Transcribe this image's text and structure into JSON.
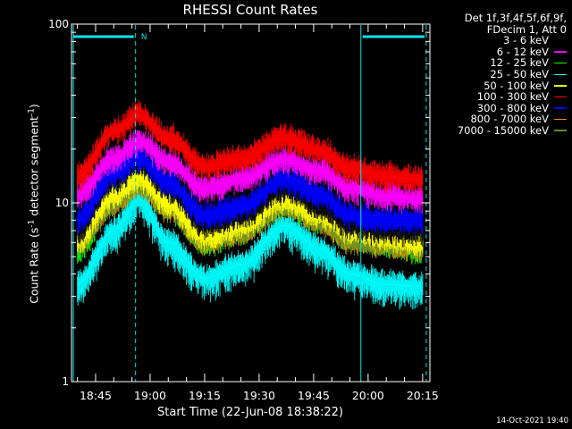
{
  "chart_data": {
    "type": "line",
    "title": "RHESSI Count Rates",
    "xlabel": "Start Time (22-Jun-08 18:38:22)",
    "ylabel_main": "Count Rate (s",
    "ylabel_exp": "-1",
    "ylabel_rest": " detector segment",
    "ylabel_exp2": "-1",
    "ylabel_close": ")",
    "y_scale": "log",
    "ylim": [
      1,
      100
    ],
    "y_ticks": [
      "1",
      "10",
      "100"
    ],
    "xlim": [
      "18:38:22",
      "20:17"
    ],
    "x_ticks": [
      "18:45",
      "19:00",
      "19:15",
      "19:30",
      "19:45",
      "20:00",
      "20:15"
    ],
    "grid": false,
    "legend_position": "top-right",
    "legend_header": [
      "Det 1f,3f,4f,5f,6f,9f,",
      "FDecim 1, Att 0"
    ],
    "series": [
      {
        "name": "3 - 6 keV",
        "color": "#000000",
        "x": [
          "18:40",
          "18:50",
          "18:57",
          "19:05",
          "19:15",
          "19:25",
          "19:37",
          "19:47",
          "19:55",
          "20:05",
          "20:15"
        ],
        "values": [
          7.0,
          13.5,
          17.0,
          12.0,
          7.5,
          8.5,
          12.0,
          9.5,
          7.5,
          7.0,
          7.0
        ]
      },
      {
        "name": "6 - 12 keV",
        "color": "#ff00ff",
        "x": [
          "18:40",
          "18:50",
          "18:57",
          "19:05",
          "19:15",
          "19:25",
          "19:37",
          "19:47",
          "19:55",
          "20:05",
          "20:15"
        ],
        "values": [
          11.0,
          17.5,
          22.0,
          17.0,
          12.0,
          13.5,
          17.5,
          15.0,
          12.0,
          11.0,
          10.5
        ]
      },
      {
        "name": "12 - 25 keV",
        "color": "#00ff00",
        "x": [
          "18:40",
          "18:50",
          "18:57",
          "19:05",
          "19:15",
          "19:25",
          "19:37",
          "19:47",
          "19:55",
          "20:05",
          "20:15"
        ],
        "values": [
          5.5,
          10.5,
          13.5,
          9.5,
          6.0,
          7.0,
          10.0,
          8.0,
          6.5,
          6.0,
          5.5
        ]
      },
      {
        "name": "25 - 50 keV",
        "color": "#00ffff",
        "x": [
          "18:40",
          "18:50",
          "18:57",
          "19:05",
          "19:15",
          "19:25",
          "19:37",
          "19:47",
          "19:55",
          "20:05",
          "20:15"
        ],
        "values": [
          3.5,
          7.0,
          10.5,
          6.0,
          3.8,
          4.5,
          7.5,
          5.5,
          4.0,
          3.5,
          3.4
        ]
      },
      {
        "name": "50 - 100 keV",
        "color": "#ffff00",
        "x": [
          "18:40",
          "18:50",
          "18:57",
          "19:05",
          "19:15",
          "19:25",
          "19:37",
          "19:47",
          "19:55",
          "20:05",
          "20:15"
        ],
        "values": [
          6.2,
          11.0,
          14.0,
          10.0,
          6.5,
          7.5,
          10.5,
          8.5,
          7.0,
          6.5,
          6.0
        ]
      },
      {
        "name": "100 - 300 keV",
        "color": "#ff0000",
        "x": [
          "18:40",
          "18:50",
          "18:57",
          "19:05",
          "19:15",
          "19:25",
          "19:37",
          "19:47",
          "19:55",
          "20:05",
          "20:15"
        ],
        "values": [
          14.0,
          25.0,
          31.0,
          23.0,
          16.0,
          17.5,
          23.0,
          19.5,
          15.5,
          14.0,
          13.5
        ]
      },
      {
        "name": "300 - 800 keV",
        "color": "#0000ff",
        "x": [
          "18:40",
          "18:50",
          "18:57",
          "19:05",
          "19:15",
          "19:25",
          "19:37",
          "19:47",
          "19:55",
          "20:05",
          "20:15"
        ],
        "values": [
          8.0,
          14.5,
          18.0,
          13.0,
          8.5,
          9.5,
          13.5,
          11.0,
          8.5,
          8.0,
          8.0
        ]
      },
      {
        "name": "800 - 7000 keV",
        "color": "#ff8c00",
        "x": [
          "18:40",
          "18:50",
          "18:57",
          "19:05",
          "19:15",
          "19:25",
          "19:37",
          "19:47",
          "19:55",
          "20:05",
          "20:15"
        ],
        "values": [
          6.0,
          10.0,
          13.0,
          9.5,
          6.2,
          7.0,
          10.0,
          8.0,
          6.3,
          6.0,
          5.7
        ]
      },
      {
        "name": "7000 - 15000 keV",
        "color": "#6b8e23",
        "x": [
          "18:40",
          "18:50",
          "18:57",
          "19:05",
          "19:15",
          "19:25",
          "19:37",
          "19:47",
          "19:55",
          "20:05",
          "20:15"
        ],
        "values": [
          6.0,
          10.0,
          13.0,
          9.5,
          6.2,
          7.0,
          10.0,
          8.0,
          6.3,
          6.0,
          5.7
        ]
      }
    ],
    "annotations": {
      "night_bars_color": "#00e5ee",
      "n_marker": "N",
      "night_intervals": [
        [
          "18:38:22",
          "18:56"
        ],
        [
          "19:58",
          "20:16"
        ]
      ]
    }
  },
  "footer_timestamp": "14-Oct-2021 19:40"
}
